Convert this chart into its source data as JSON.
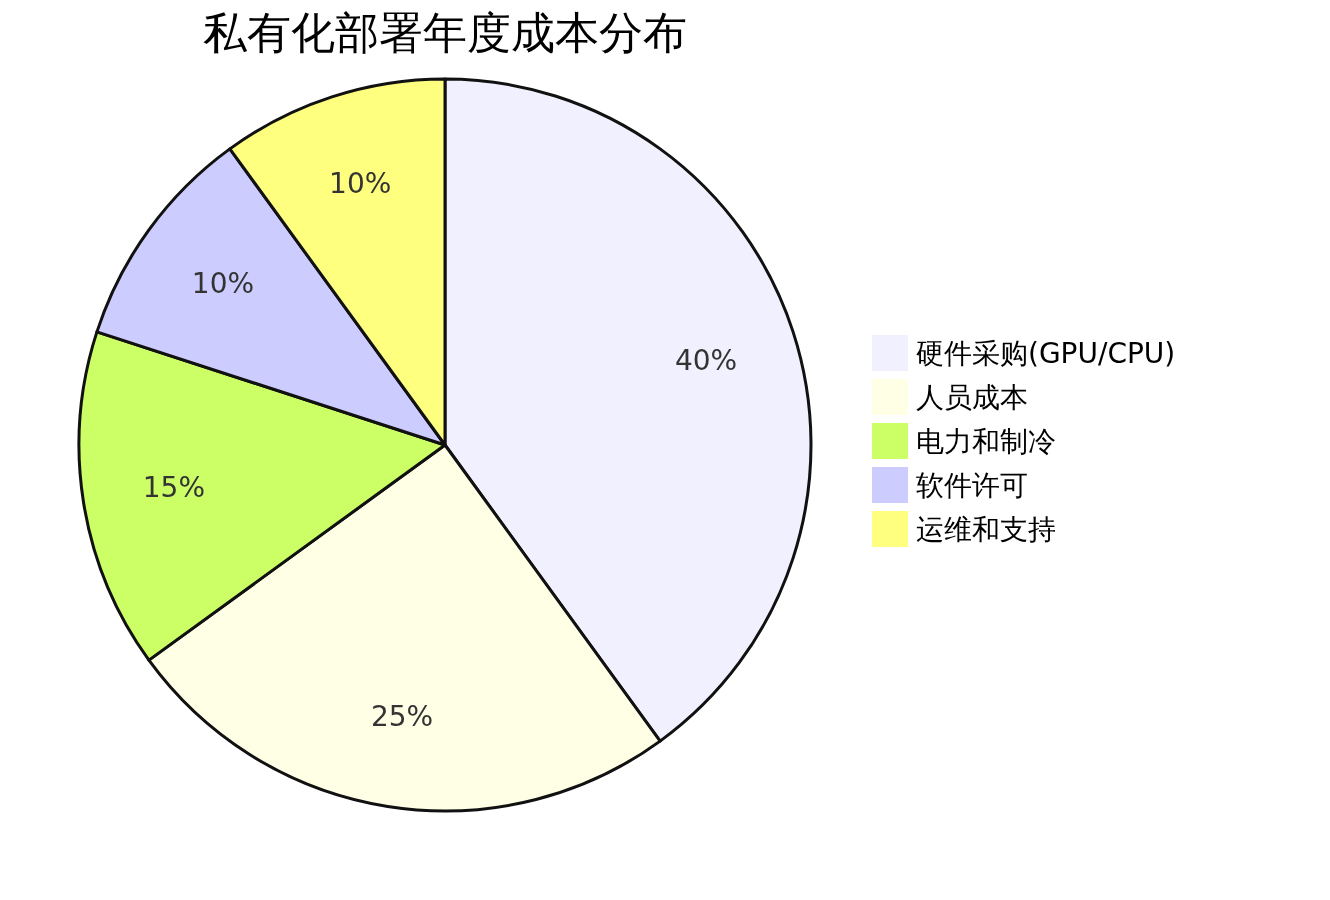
{
  "chart_data": {
    "type": "pie",
    "title": "私有化部署年度成本分布",
    "categories": [
      "硬件采购(GPU/CPU)",
      "人员成本",
      "电力和制冷",
      "软件许可",
      "运维和支持"
    ],
    "values": [
      40,
      25,
      15,
      10,
      10
    ],
    "colors": [
      "#f0f0ff",
      "#ffffe6",
      "#ccff66",
      "#ccccff",
      "#ffff7f"
    ],
    "value_labels": [
      "40%",
      "25%",
      "15%",
      "10%",
      "10%"
    ],
    "legend": "right"
  }
}
